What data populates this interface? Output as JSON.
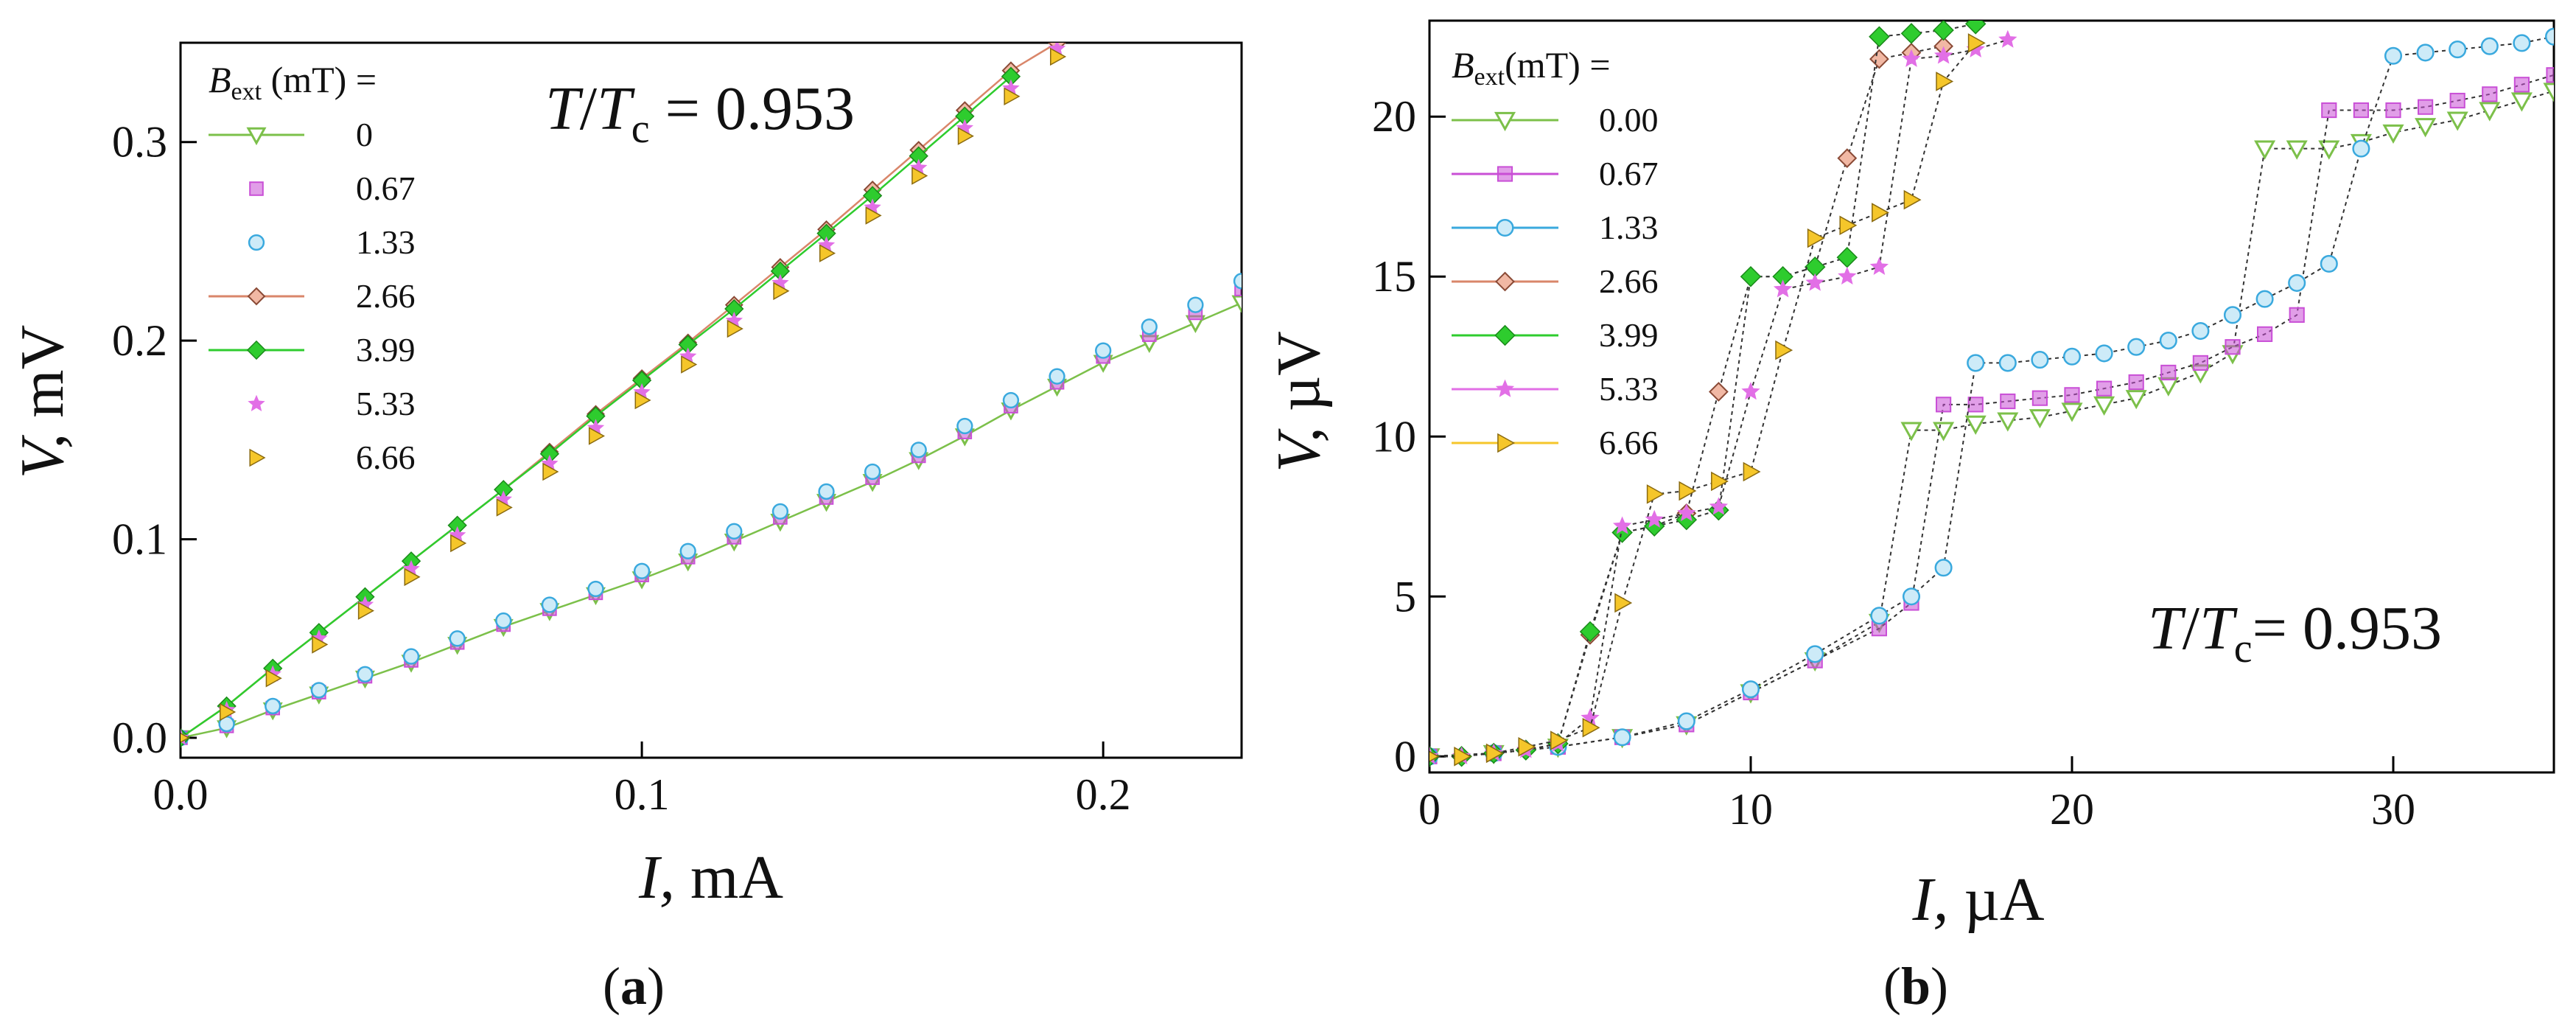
{
  "chart_data": [
    {
      "panel_label": "(a)",
      "type": "scatter",
      "annotation": "T/Tc = 0.953",
      "xlabel": "I, mA",
      "ylabel": "V, mV",
      "xlim": [
        0.0,
        0.23
      ],
      "ylim": [
        -0.01,
        0.35
      ],
      "xticks": [
        "0.0",
        "0.1",
        "0.2"
      ],
      "xtick_values": [
        0.0,
        0.1,
        0.2
      ],
      "yticks": [
        "0.0",
        "0.1",
        "0.2",
        "0.3"
      ],
      "ytick_values": [
        0.0,
        0.1,
        0.2,
        0.3
      ],
      "legend_title": "B_ext (mT) =",
      "legend_position": "top-left",
      "grid": false,
      "series": [
        {
          "name": "0",
          "marker": "triangle-down",
          "color": "#7cc04a",
          "line": true,
          "x": [
            0,
            0.01,
            0.02,
            0.03,
            0.04,
            0.05,
            0.06,
            0.07,
            0.08,
            0.09,
            0.1,
            0.11,
            0.12,
            0.13,
            0.14,
            0.15,
            0.16,
            0.17,
            0.18,
            0.19,
            0.2,
            0.21,
            0.22,
            0.23
          ],
          "y": [
            0,
            0.005,
            0.014,
            0.022,
            0.03,
            0.038,
            0.047,
            0.056,
            0.064,
            0.072,
            0.08,
            0.089,
            0.099,
            0.109,
            0.119,
            0.129,
            0.14,
            0.152,
            0.165,
            0.177,
            0.189,
            0.199,
            0.209,
            0.219
          ]
        },
        {
          "name": "0.67",
          "marker": "square",
          "color": "#c94fd6",
          "line": false,
          "x": [
            0,
            0.01,
            0.02,
            0.03,
            0.04,
            0.05,
            0.06,
            0.07,
            0.08,
            0.09,
            0.1,
            0.11,
            0.12,
            0.13,
            0.14,
            0.15,
            0.16,
            0.17,
            0.18,
            0.19,
            0.2,
            0.21,
            0.22,
            0.23
          ],
          "y": [
            0,
            0.006,
            0.015,
            0.023,
            0.031,
            0.039,
            0.048,
            0.057,
            0.065,
            0.073,
            0.082,
            0.091,
            0.101,
            0.111,
            0.121,
            0.131,
            0.142,
            0.154,
            0.167,
            0.179,
            0.192,
            0.203,
            0.214,
            0.226
          ]
        },
        {
          "name": "1.33",
          "marker": "circle",
          "color": "#3aa9de",
          "line": false,
          "x": [
            0,
            0.01,
            0.02,
            0.03,
            0.04,
            0.05,
            0.06,
            0.07,
            0.08,
            0.09,
            0.1,
            0.11,
            0.12,
            0.13,
            0.14,
            0.15,
            0.16,
            0.17,
            0.18,
            0.19,
            0.2,
            0.21,
            0.22,
            0.23
          ],
          "y": [
            0,
            0.007,
            0.016,
            0.024,
            0.032,
            0.041,
            0.05,
            0.059,
            0.067,
            0.075,
            0.084,
            0.094,
            0.104,
            0.114,
            0.124,
            0.134,
            0.145,
            0.157,
            0.17,
            0.182,
            0.195,
            0.207,
            0.218,
            0.23
          ]
        },
        {
          "name": "2.66",
          "marker": "diamond",
          "color": "#d9866a",
          "line": true,
          "x": [
            0,
            0.01,
            0.02,
            0.03,
            0.04,
            0.05,
            0.06,
            0.07,
            0.08,
            0.09,
            0.1,
            0.11,
            0.12,
            0.13,
            0.14,
            0.15,
            0.16,
            0.17,
            0.18,
            0.19
          ],
          "y": [
            0,
            0.016,
            0.035,
            0.053,
            0.071,
            0.089,
            0.107,
            0.125,
            0.144,
            0.163,
            0.181,
            0.199,
            0.218,
            0.237,
            0.256,
            0.276,
            0.296,
            0.316,
            0.336,
            0.35
          ]
        },
        {
          "name": "3.99",
          "marker": "diamond-filled",
          "color": "#2ecc2e",
          "line": true,
          "x": [
            0,
            0.01,
            0.02,
            0.03,
            0.04,
            0.05,
            0.06,
            0.07,
            0.08,
            0.09,
            0.1,
            0.11,
            0.12,
            0.13,
            0.14,
            0.15,
            0.16,
            0.17,
            0.18
          ],
          "y": [
            0,
            0.016,
            0.035,
            0.053,
            0.071,
            0.089,
            0.107,
            0.125,
            0.143,
            0.162,
            0.18,
            0.198,
            0.216,
            0.235,
            0.254,
            0.273,
            0.293,
            0.313,
            0.333
          ]
        },
        {
          "name": "5.33",
          "marker": "star",
          "color": "#e26fe6",
          "line": false,
          "x": [
            0,
            0.01,
            0.02,
            0.03,
            0.04,
            0.05,
            0.06,
            0.07,
            0.08,
            0.09,
            0.1,
            0.11,
            0.12,
            0.13,
            0.14,
            0.15,
            0.16,
            0.17,
            0.18,
            0.19
          ],
          "y": [
            0,
            0.014,
            0.032,
            0.05,
            0.067,
            0.085,
            0.102,
            0.12,
            0.138,
            0.156,
            0.174,
            0.192,
            0.21,
            0.229,
            0.248,
            0.267,
            0.287,
            0.307,
            0.327,
            0.347
          ]
        },
        {
          "name": "6.66",
          "marker": "triangle-right",
          "color": "#f5c62a",
          "line": false,
          "x": [
            0,
            0.01,
            0.02,
            0.03,
            0.04,
            0.05,
            0.06,
            0.07,
            0.08,
            0.09,
            0.1,
            0.11,
            0.12,
            0.13,
            0.14,
            0.15,
            0.16,
            0.17,
            0.18,
            0.19
          ],
          "y": [
            0,
            0.013,
            0.03,
            0.047,
            0.064,
            0.081,
            0.098,
            0.116,
            0.134,
            0.152,
            0.17,
            0.188,
            0.206,
            0.225,
            0.244,
            0.263,
            0.283,
            0.303,
            0.323,
            0.343
          ]
        }
      ]
    },
    {
      "panel_label": "(b)",
      "type": "scatter",
      "annotation": "T/Tc= 0.953",
      "xlabel": "I, µA",
      "ylabel": "V, µV",
      "xlim": [
        0,
        35
      ],
      "ylim": [
        -0.5,
        23
      ],
      "xticks": [
        "0",
        "10",
        "20",
        "30"
      ],
      "xtick_values": [
        0,
        10,
        20,
        30
      ],
      "yticks": [
        "0",
        "5",
        "10",
        "15",
        "20"
      ],
      "ytick_values": [
        0,
        5,
        10,
        15,
        20
      ],
      "legend_title": "B_ext(mT) =",
      "legend_position": "top-left",
      "grid": false,
      "series": [
        {
          "name": "0.00",
          "marker": "triangle-down",
          "color": "#7cc04a",
          "line": true,
          "x": [
            0,
            2,
            4,
            6,
            8,
            10,
            12,
            14,
            15,
            16,
            17,
            18,
            19,
            20,
            21,
            22,
            23,
            24,
            25,
            26,
            27,
            28,
            29,
            30,
            31,
            32,
            33,
            34,
            35
          ],
          "y": [
            0,
            0.1,
            0.3,
            0.6,
            1.0,
            2.0,
            3.0,
            4.2,
            10.2,
            10.2,
            10.4,
            10.5,
            10.6,
            10.8,
            11.0,
            11.2,
            11.6,
            12.0,
            12.6,
            19.0,
            19.0,
            19.0,
            19.2,
            19.5,
            19.7,
            19.9,
            20.2,
            20.5,
            20.8
          ]
        },
        {
          "name": "0.67",
          "marker": "square",
          "color": "#c94fd6",
          "line": true,
          "x": [
            0,
            2,
            4,
            6,
            8,
            10,
            12,
            14,
            15,
            16,
            17,
            18,
            19,
            20,
            21,
            22,
            23,
            24,
            25,
            26,
            27,
            28,
            29,
            30,
            31,
            32,
            33,
            34,
            35
          ],
          "y": [
            0,
            0.1,
            0.3,
            0.6,
            1.0,
            2.0,
            3.0,
            4.0,
            4.8,
            11.0,
            11.0,
            11.1,
            11.2,
            11.3,
            11.5,
            11.7,
            12.0,
            12.3,
            12.8,
            13.2,
            13.8,
            20.2,
            20.2,
            20.2,
            20.3,
            20.5,
            20.7,
            21.0,
            21.3
          ]
        },
        {
          "name": "1.33",
          "marker": "circle",
          "color": "#3aa9de",
          "line": true,
          "x": [
            0,
            2,
            4,
            6,
            8,
            10,
            12,
            14,
            15,
            16,
            17,
            18,
            19,
            20,
            21,
            22,
            23,
            24,
            25,
            26,
            27,
            28,
            29,
            30,
            31,
            32,
            33,
            34,
            35
          ],
          "y": [
            0,
            0.1,
            0.3,
            0.6,
            1.1,
            2.1,
            3.2,
            4.4,
            5.0,
            5.9,
            12.3,
            12.3,
            12.4,
            12.5,
            12.6,
            12.8,
            13.0,
            13.3,
            13.8,
            14.3,
            14.8,
            15.4,
            19.0,
            21.9,
            22.0,
            22.1,
            22.2,
            22.3,
            22.5
          ]
        },
        {
          "name": "2.66",
          "marker": "diamond",
          "color": "#d9866a",
          "line": true,
          "x": [
            0,
            1,
            2,
            3,
            4,
            5,
            6,
            7,
            8,
            9,
            10,
            11,
            12,
            13,
            14,
            15,
            16
          ],
          "y": [
            0,
            0,
            0.1,
            0.2,
            0.4,
            3.8,
            7.0,
            7.2,
            7.6,
            11.4,
            15.0,
            15.0,
            15.3,
            18.7,
            21.8,
            22.0,
            22.2
          ]
        },
        {
          "name": "3.99",
          "marker": "diamond-filled",
          "color": "#2ecc2e",
          "line": true,
          "x": [
            0,
            1,
            2,
            3,
            4,
            5,
            6,
            7,
            8,
            9,
            10,
            11,
            12,
            13,
            14,
            15,
            16,
            17
          ],
          "y": [
            0,
            0,
            0.1,
            0.2,
            0.4,
            3.9,
            7.0,
            7.2,
            7.4,
            7.7,
            15.0,
            15.0,
            15.3,
            15.6,
            22.5,
            22.6,
            22.7,
            22.9
          ]
        },
        {
          "name": "5.33",
          "marker": "star",
          "color": "#e26fe6",
          "line": true,
          "x": [
            0,
            1,
            2,
            3,
            4,
            5,
            6,
            7,
            8,
            9,
            10,
            11,
            12,
            13,
            14,
            15,
            16,
            17,
            18
          ],
          "y": [
            0,
            0,
            0.1,
            0.2,
            0.4,
            1.2,
            7.2,
            7.4,
            7.6,
            7.8,
            11.4,
            14.6,
            14.8,
            15.0,
            15.3,
            21.8,
            21.9,
            22.1,
            22.4
          ]
        },
        {
          "name": "6.66",
          "marker": "triangle-right",
          "color": "#f5c62a",
          "line": true,
          "x": [
            0,
            1,
            2,
            3,
            4,
            5,
            6,
            7,
            8,
            9,
            10,
            11,
            12,
            13,
            14,
            15,
            16,
            17
          ],
          "y": [
            0,
            0,
            0.1,
            0.3,
            0.5,
            0.9,
            4.8,
            8.2,
            8.3,
            8.6,
            8.9,
            12.7,
            16.2,
            16.6,
            17.0,
            17.4,
            21.1,
            22.3
          ]
        }
      ]
    }
  ]
}
